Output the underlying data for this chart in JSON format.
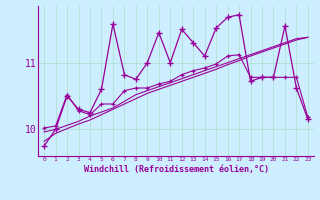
{
  "xlabel": "Windchill (Refroidissement éolien,°C)",
  "bg_color": "#cceeff",
  "line_color": "#990099",
  "xlim": [
    -0.5,
    23.5
  ],
  "ylim": [
    9.6,
    11.85
  ],
  "yticks": [
    10,
    11
  ],
  "xticks": [
    0,
    1,
    2,
    3,
    4,
    5,
    6,
    7,
    8,
    9,
    10,
    11,
    12,
    13,
    14,
    15,
    16,
    17,
    18,
    19,
    20,
    21,
    22,
    23
  ],
  "series1_x": [
    0,
    1,
    2,
    3,
    4,
    5,
    6,
    7,
    8,
    9,
    10,
    11,
    12,
    13,
    14,
    15,
    16,
    17,
    18,
    19,
    20,
    21,
    22,
    23
  ],
  "series1_y": [
    9.75,
    10.0,
    10.5,
    10.3,
    10.25,
    10.6,
    11.58,
    10.82,
    10.75,
    11.0,
    11.45,
    11.0,
    11.5,
    11.3,
    11.1,
    11.52,
    11.68,
    11.72,
    10.72,
    10.78,
    10.78,
    11.55,
    10.62,
    10.15
  ],
  "series2_x": [
    0,
    1,
    2,
    3,
    4,
    5,
    6,
    7,
    8,
    9,
    10,
    11,
    12,
    13,
    14,
    15,
    16,
    17,
    18,
    19,
    20,
    21,
    22,
    23
  ],
  "series2_y": [
    10.02,
    10.05,
    10.52,
    10.28,
    10.22,
    10.38,
    10.38,
    10.58,
    10.62,
    10.62,
    10.68,
    10.72,
    10.82,
    10.88,
    10.92,
    10.98,
    11.1,
    11.12,
    10.78,
    10.78,
    10.78,
    10.78,
    10.78,
    10.18
  ],
  "series3_x": [
    0,
    1,
    2,
    3,
    4,
    5,
    6,
    7,
    8,
    9,
    10,
    11,
    12,
    13,
    14,
    15,
    16,
    17,
    18,
    19,
    20,
    21,
    22,
    23
  ],
  "series3_y": [
    9.96,
    10.0,
    10.06,
    10.12,
    10.2,
    10.26,
    10.32,
    10.42,
    10.52,
    10.58,
    10.64,
    10.7,
    10.76,
    10.82,
    10.88,
    10.94,
    11.0,
    11.06,
    11.12,
    11.18,
    11.24,
    11.3,
    11.36,
    11.38
  ],
  "series4_x": [
    0,
    1,
    2,
    3,
    4,
    5,
    6,
    7,
    8,
    9,
    10,
    11,
    12,
    13,
    14,
    15,
    16,
    17,
    18,
    19,
    20,
    21,
    22,
    23
  ],
  "series4_y": [
    9.82,
    9.94,
    10.01,
    10.08,
    10.14,
    10.22,
    10.3,
    10.38,
    10.46,
    10.54,
    10.6,
    10.66,
    10.72,
    10.78,
    10.84,
    10.9,
    10.97,
    11.03,
    11.1,
    11.16,
    11.22,
    11.28,
    11.34,
    11.38
  ]
}
